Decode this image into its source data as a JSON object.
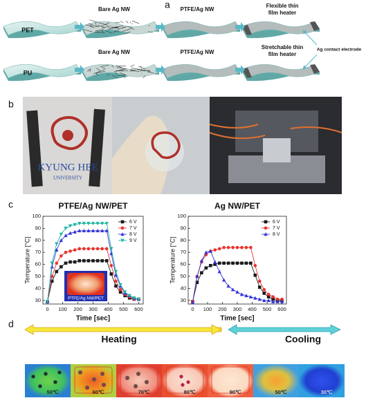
{
  "panel_labels": [
    "a",
    "b",
    "c",
    "d"
  ],
  "panel_a": {
    "row1": {
      "substrate": "PET",
      "step1": "Bare Ag NW",
      "step2": "PTFE/Ag NW",
      "result": [
        "Flexible thin",
        "film heater"
      ]
    },
    "row2": {
      "substrate": "PU",
      "step1": "Bare Ag NW",
      "step2": "PTFE/Ag NW",
      "result": [
        "Stretchable thin",
        "film heater"
      ]
    },
    "electrode": "Ag contact electrode"
  },
  "panel_b": {
    "photo_text": [
      "KYUNG HEE",
      "UNIVERSITY"
    ]
  },
  "chart_data": [
    {
      "type": "line",
      "title": "PTFE/Ag NW/PET",
      "xlabel": "Time [sec]",
      "ylabel": "Temperature [°C]",
      "inset_label": "PTFE/Ag NW/PET",
      "x": [
        0,
        30,
        60,
        90,
        120,
        150,
        180,
        210,
        240,
        270,
        300,
        330,
        360,
        390,
        420,
        450,
        480,
        510,
        540,
        570,
        600
      ],
      "xlim": [
        -30,
        630
      ],
      "xticks": [
        0,
        100,
        200,
        300,
        400,
        500,
        600
      ],
      "ylim": [
        27,
        100
      ],
      "yticks": [
        30,
        40,
        50,
        60,
        70,
        80,
        90,
        100
      ],
      "legend": "upper right",
      "series": [
        {
          "name": "6 V",
          "color": "#1a1a1a",
          "marker": "square",
          "values": [
            29,
            46,
            54,
            58,
            61,
            62,
            62,
            63,
            63,
            63,
            63,
            63,
            63,
            63,
            52,
            42,
            37,
            34,
            32,
            31,
            31
          ]
        },
        {
          "name": "7 V",
          "color": "#e8322e",
          "marker": "circle",
          "values": [
            29,
            50,
            61,
            67,
            70,
            71,
            72,
            73,
            73,
            73,
            73,
            73,
            73,
            73,
            59,
            46,
            39,
            35,
            33,
            31,
            31
          ]
        },
        {
          "name": "8 V",
          "color": "#3434d6",
          "marker": "triangle-up",
          "values": [
            29,
            58,
            72,
            80,
            84,
            86,
            87,
            88,
            88,
            88,
            88,
            88,
            88,
            88,
            69,
            51,
            42,
            36,
            34,
            32,
            31
          ]
        },
        {
          "name": "9 V",
          "color": "#1fb5a0",
          "marker": "triangle-down",
          "values": [
            29,
            61,
            77,
            85,
            90,
            92,
            93,
            94,
            94,
            94,
            94,
            94,
            94,
            94,
            73,
            54,
            43,
            37,
            34,
            32,
            31
          ]
        }
      ]
    },
    {
      "type": "line",
      "title": "Ag NW/PET",
      "xlabel": "Time [sec]",
      "ylabel": "Temperature [°C]",
      "x": [
        0,
        30,
        60,
        90,
        120,
        150,
        180,
        210,
        240,
        270,
        300,
        330,
        360,
        390,
        420,
        450,
        480,
        510,
        540,
        570,
        600
      ],
      "xlim": [
        -30,
        630
      ],
      "xticks": [
        0,
        100,
        200,
        300,
        400,
        500,
        600
      ],
      "ylim": [
        27,
        100
      ],
      "yticks": [
        30,
        40,
        50,
        60,
        70,
        80,
        90,
        100
      ],
      "legend": "upper right",
      "series": [
        {
          "name": "6 V",
          "color": "#1a1a1a",
          "marker": "square",
          "values": [
            29,
            45,
            53,
            57,
            59,
            60,
            61,
            61,
            61,
            61,
            61,
            61,
            61,
            61,
            51,
            41,
            36,
            33,
            31,
            30,
            30
          ]
        },
        {
          "name": "7 V",
          "color": "#e8322e",
          "marker": "circle",
          "values": [
            29,
            50,
            62,
            68,
            71,
            72,
            73,
            74,
            74,
            74,
            74,
            74,
            74,
            74,
            59,
            46,
            39,
            35,
            33,
            31,
            31
          ]
        },
        {
          "name": "8 V",
          "color": "#3434d6",
          "marker": "triangle-up",
          "values": [
            28,
            50,
            63,
            70,
            71,
            62,
            54,
            47,
            42,
            39,
            37,
            35,
            34,
            33,
            32,
            31,
            30,
            30,
            29,
            29,
            29
          ]
        }
      ]
    }
  ],
  "panel_d": {
    "heating": "Heating",
    "cooling": "Cooling",
    "temperatures": [
      "50℃",
      "60℃",
      "70℃",
      "80℃",
      "90℃",
      "50℃",
      "30℃"
    ]
  }
}
